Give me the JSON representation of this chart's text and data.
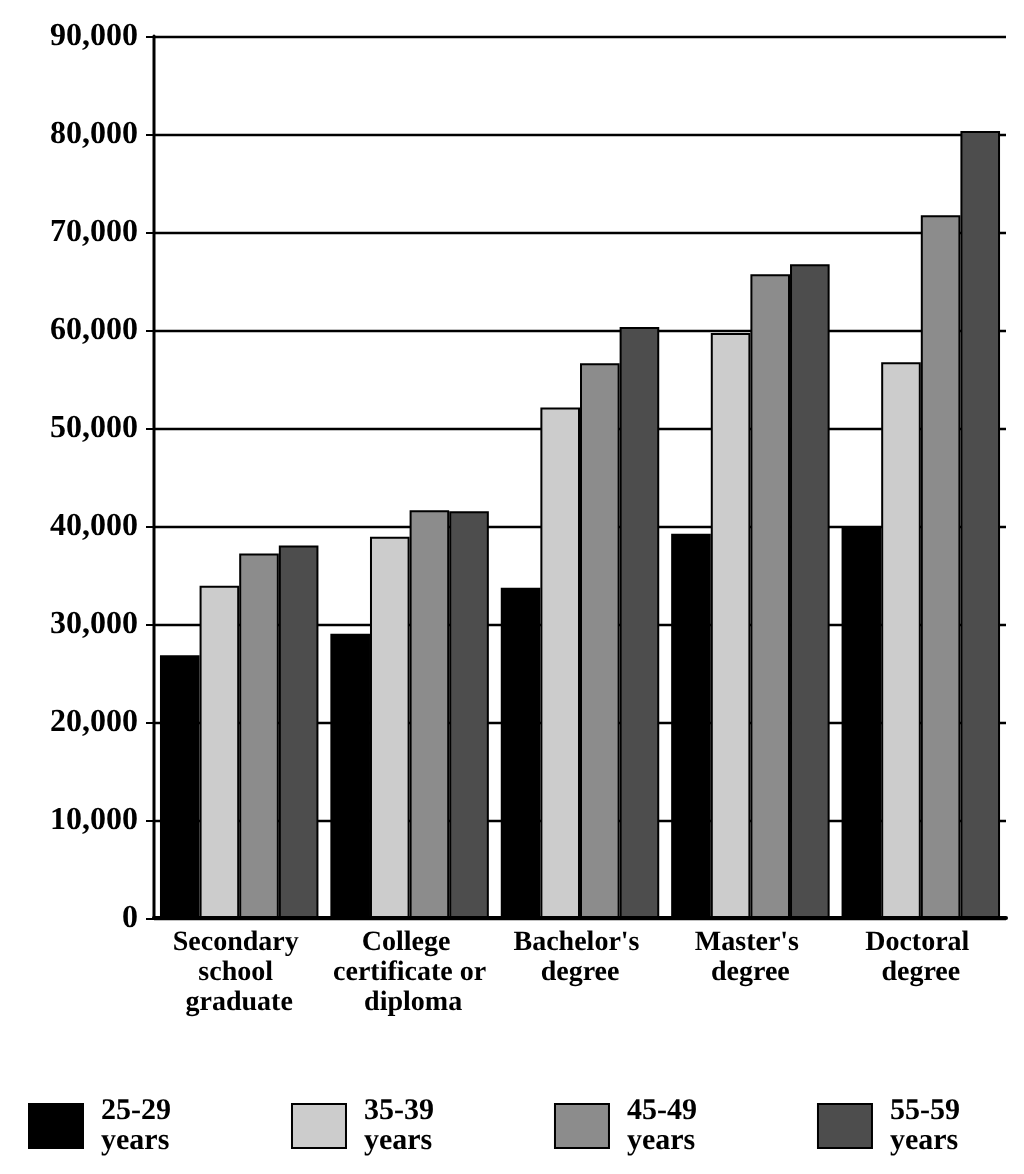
{
  "chart_data": {
    "type": "bar",
    "categories": [
      "Secondary school graduate",
      "College certificate or diploma",
      "Bachelor's degree",
      "Master's degree",
      "Doctoral degree"
    ],
    "series": [
      {
        "name": "25-29 years",
        "color": "#000000",
        "values": [
          26800,
          29000,
          33700,
          39200,
          40000
        ]
      },
      {
        "name": "35-39 years",
        "color": "#cccccc",
        "values": [
          33900,
          38900,
          52100,
          59700,
          56700
        ]
      },
      {
        "name": "45-49 years",
        "color": "#8c8c8c",
        "values": [
          37200,
          41600,
          56600,
          65700,
          71700
        ]
      },
      {
        "name": "55-59 years",
        "color": "#4d4d4d",
        "values": [
          38000,
          41500,
          60300,
          66700,
          80300
        ]
      }
    ],
    "ylim": [
      0,
      90000
    ],
    "yticks": [
      0,
      {
        "value": 10000,
        "label": "10,000"
      },
      {
        "value": 20000,
        "label": "20,000"
      },
      {
        "value": 30000,
        "label": "30,000"
      },
      {
        "value": 40000,
        "label": "40,000"
      },
      {
        "value": 50000,
        "label": "50,000"
      },
      {
        "value": 60000,
        "label": "60,000"
      },
      {
        "value": 70000,
        "label": "70,000"
      },
      {
        "value": 80000,
        "label": "80,000"
      },
      {
        "value": 90000,
        "label": "90,000"
      }
    ],
    "grid": "y",
    "legend": "bottom"
  }
}
